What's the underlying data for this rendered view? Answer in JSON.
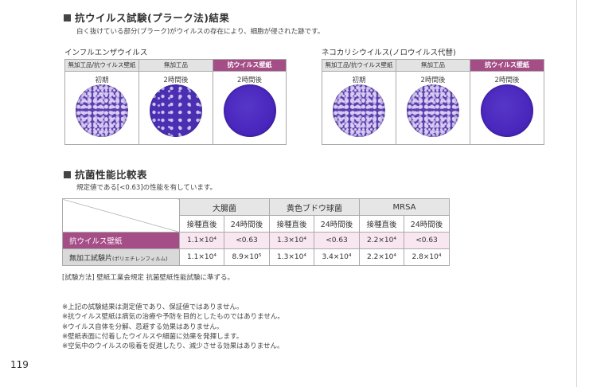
{
  "section1": {
    "title": "抗ウイルス試験(プラーク法)結果",
    "description": "白く抜けている部分(プラーク)がウイルスの存在により、細胞が侵された跡です。"
  },
  "panels": [
    {
      "virus": "インフルエンザウイルス",
      "cells": [
        {
          "header": "無加工品/抗ウイルス壁紙",
          "time": "初期",
          "highlight": false,
          "dish": "many"
        },
        {
          "header": "無加工品",
          "time": "2時間後",
          "highlight": false,
          "dish": "some"
        },
        {
          "header": "抗ウイルス壁紙",
          "time": "2時間後",
          "highlight": true,
          "dish": "none"
        }
      ]
    },
    {
      "virus": "ネコカリシウイルス(ノロウイルス代替)",
      "cells": [
        {
          "header": "無加工品/抗ウイルス壁紙",
          "time": "初期",
          "highlight": false,
          "dish": "many"
        },
        {
          "header": "無加工品",
          "time": "2時間後",
          "highlight": false,
          "dish": "many"
        },
        {
          "header": "抗ウイルス壁紙",
          "time": "2時間後",
          "highlight": true,
          "dish": "none"
        }
      ]
    }
  ],
  "section2": {
    "title": "抗菌性能比較表",
    "description": "規定値である[<0.63]の性能を有しています。"
  },
  "table": {
    "groups": [
      "大腸菌",
      "黄色ブドウ球菌",
      "MRSA"
    ],
    "subs": [
      "接種直後",
      "24時間後"
    ],
    "rows": [
      {
        "label": "抗ウイルス壁紙",
        "values": [
          "1.1×10⁴",
          "<0.63",
          "1.3×10⁴",
          "<0.63",
          "2.2×10⁴",
          "<0.63"
        ]
      },
      {
        "label": "無加工試験片",
        "label_small": "(ポリエチレンフィルム)",
        "values": [
          "1.1×10⁴",
          "8.9×10⁵",
          "1.3×10⁴",
          "3.4×10⁴",
          "2.2×10⁴",
          "2.8×10⁴"
        ]
      }
    ]
  },
  "method": "[試験方法] 壁紙工業会規定 抗菌壁紙性能試験に準ずる。",
  "notes": [
    "※上記の試験結果は測定値であり、保証値ではありません。",
    "※抗ウイルス壁紙は病気の治療や予防を目的としたものではありません。",
    "※ウイルス自体を分解、忌避する効果はありません。",
    "※壁紙表面に付着したウイルスや細菌に効果を発揮します。",
    "※空気中のウイルスの吸着を促進したり、減少させる効果はありません。"
  ],
  "page_number": "119"
}
